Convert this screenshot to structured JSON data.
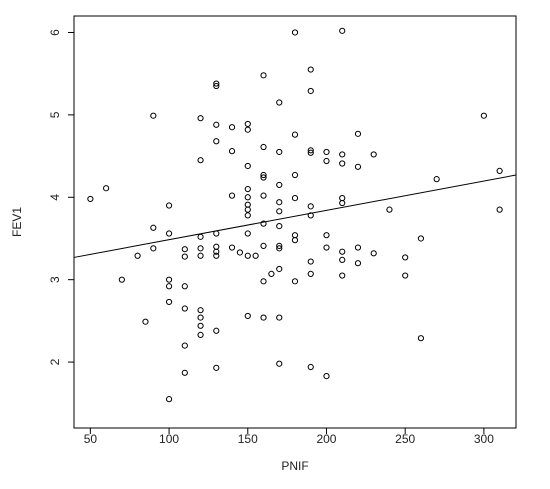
{
  "chart_data": {
    "type": "scatter",
    "x_label": "PNIF",
    "y_label": "FEV1",
    "color": "#000000",
    "x": [
      50,
      60,
      70,
      80,
      85,
      90,
      90,
      90,
      100,
      100,
      100,
      100,
      100,
      100,
      110,
      110,
      110,
      110,
      110,
      110,
      120,
      120,
      120,
      120,
      120,
      120,
      120,
      120,
      120,
      130,
      130,
      130,
      130,
      130,
      130,
      130,
      130,
      130,
      130,
      140,
      140,
      140,
      140,
      145,
      150,
      150,
      150,
      150,
      150,
      150,
      150,
      150,
      150,
      150,
      150,
      155,
      160,
      160,
      160,
      160,
      160,
      160,
      160,
      160,
      160,
      165,
      170,
      170,
      170,
      170,
      170,
      170,
      170,
      170,
      170,
      170,
      170,
      180,
      180,
      180,
      180,
      180,
      180,
      180,
      190,
      190,
      190,
      190,
      190,
      190,
      190,
      190,
      190,
      200,
      200,
      200,
      200,
      200,
      210,
      210,
      210,
      210,
      210,
      210,
      210,
      210,
      220,
      220,
      220,
      220,
      230,
      230,
      240,
      250,
      250,
      260,
      260,
      270,
      300,
      310,
      310
    ],
    "y": [
      3.98,
      4.11,
      3.0,
      3.29,
      2.49,
      4.99,
      3.63,
      3.38,
      3.9,
      3.56,
      3.0,
      2.92,
      2.73,
      1.55,
      3.37,
      3.28,
      2.92,
      2.65,
      2.2,
      1.87,
      4.96,
      4.45,
      3.52,
      3.38,
      3.29,
      2.63,
      2.54,
      2.44,
      2.33,
      5.38,
      5.35,
      4.88,
      4.68,
      3.56,
      3.4,
      3.34,
      3.29,
      2.38,
      1.93,
      4.85,
      4.56,
      4.02,
      3.39,
      3.33,
      4.89,
      4.82,
      4.38,
      4.1,
      4.0,
      3.91,
      3.85,
      3.78,
      3.56,
      3.29,
      2.56,
      3.29,
      5.48,
      4.61,
      4.27,
      4.24,
      4.02,
      3.68,
      3.41,
      2.98,
      2.54,
      3.07,
      5.15,
      4.55,
      4.15,
      3.94,
      3.83,
      3.65,
      3.41,
      3.38,
      3.13,
      2.54,
      1.98,
      6.0,
      4.76,
      4.27,
      3.99,
      3.54,
      3.48,
      2.98,
      5.55,
      5.29,
      4.57,
      4.54,
      3.89,
      3.78,
      3.22,
      3.07,
      1.94,
      4.55,
      4.44,
      3.54,
      3.39,
      1.83,
      6.02,
      4.52,
      4.41,
      3.99,
      3.93,
      3.34,
      3.24,
      3.05,
      4.77,
      4.37,
      3.39,
      3.2,
      4.52,
      3.32,
      3.85,
      3.27,
      3.05,
      3.5,
      2.29,
      4.22,
      4.99,
      4.32,
      3.85
    ],
    "fit": {
      "x": [
        39.6,
        320.4
      ],
      "y": [
        3.27,
        4.27
      ]
    },
    "xlim": [
      39.6,
      320.4
    ],
    "ylim": [
      1.2,
      6.2
    ],
    "xticks": [
      50,
      100,
      150,
      200,
      250,
      300
    ],
    "yticks": [
      2,
      3,
      4,
      5,
      6
    ]
  }
}
